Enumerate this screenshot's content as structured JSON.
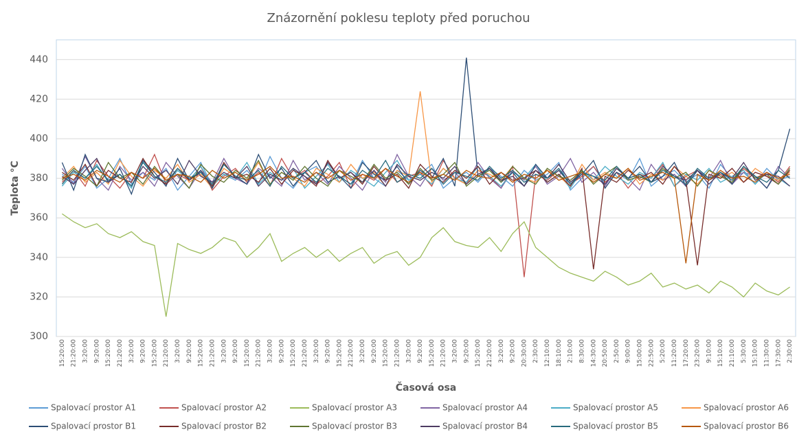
{
  "chart_data": {
    "type": "line",
    "title": "Znázornění poklesu teploty před poruchou",
    "x_label": "Časová osa",
    "y_label": "Teplota °C",
    "categories": [
      "15:20:00",
      "21:20:00",
      "3:20:00",
      "9:20:00",
      "15:20:00",
      "21:20:00",
      "3:20:00",
      "9:20:00",
      "15:20:00",
      "21:20:00",
      "3:20:00",
      "9:20:00",
      "15:20:00",
      "21:20:00",
      "3:20:00",
      "9:20:00",
      "15:20:00",
      "21:20:00",
      "3:20:00",
      "9:20:00",
      "15:20:00",
      "21:20:00",
      "3:20:00",
      "9:20:00",
      "15:20:00",
      "21:20:00",
      "3:20:00",
      "9:20:00",
      "15:20:00",
      "21:20:00",
      "3:20:00",
      "9:20:00",
      "15:20:00",
      "21:20:00",
      "3:20:00",
      "9:20:00",
      "15:20:00",
      "21:20:00",
      "3:20:00",
      "9:20:00",
      "20:30:00",
      "2:30:00",
      "12:10:00",
      "18:10:00",
      "2:10:00",
      "8:30:00",
      "14:30:00",
      "20:50:00",
      "2:50:00",
      "9:00:00",
      "15:00:00",
      "22:50:00",
      "5:20:00",
      "11:20:00",
      "17:20:00",
      "23:20:00",
      "9:10:00",
      "15:10:00",
      "21:10:00",
      "5:30:00",
      "15:10:00",
      "11:30:00",
      "17:30:00",
      "2:30:00"
    ],
    "series": [
      {
        "name": "Spalovací prostor A1",
        "color": "#5b9bd5",
        "values": [
          382,
          378,
          386,
          375,
          380,
          390,
          377,
          383,
          379,
          385,
          374,
          381,
          388,
          376,
          382,
          379,
          384,
          377,
          391,
          380,
          375,
          383,
          386,
          378,
          381,
          377,
          389,
          380,
          376,
          384,
          379,
          382,
          387,
          375,
          380,
          383,
          378,
          385,
          381,
          376,
          384,
          379,
          382,
          388,
          374,
          380,
          386,
          377,
          383,
          379,
          390,
          376,
          381,
          384,
          378,
          382,
          375,
          387,
          380,
          383,
          377,
          385,
          379,
          381
        ]
      },
      {
        "name": "Spalovací prostor A2",
        "color": "#c0504d",
        "values": [
          378,
          384,
          376,
          389,
          381,
          375,
          383,
          380,
          392,
          377,
          382,
          379,
          386,
          374,
          381,
          385,
          378,
          383,
          376,
          390,
          380,
          384,
          377,
          381,
          388,
          375,
          382,
          379,
          385,
          378,
          381,
          383,
          376,
          389,
          380,
          377,
          384,
          381,
          375,
          386,
          330,
          382,
          379,
          384,
          377,
          381,
          386,
          378,
          383,
          375,
          382,
          380,
          387,
          376,
          381,
          384,
          379,
          382,
          377,
          385,
          380,
          383,
          378,
          386
        ]
      },
      {
        "name": "Spalovací prostor A3",
        "color": "#9bbb59",
        "values": [
          362,
          358,
          355,
          357,
          352,
          350,
          353,
          348,
          346,
          310,
          347,
          344,
          342,
          345,
          350,
          348,
          340,
          345,
          352,
          338,
          342,
          345,
          340,
          344,
          338,
          342,
          345,
          337,
          341,
          343,
          336,
          340,
          350,
          355,
          348,
          346,
          345,
          350,
          343,
          352,
          358,
          345,
          340,
          335,
          332,
          330,
          328,
          333,
          330,
          326,
          328,
          332,
          325,
          327,
          324,
          326,
          322,
          328,
          325,
          320,
          327,
          323,
          321,
          325
        ]
      },
      {
        "name": "Spalovací prostor A4",
        "color": "#8064a2",
        "values": [
          385,
          377,
          391,
          380,
          374,
          386,
          379,
          383,
          376,
          388,
          381,
          375,
          384,
          378,
          390,
          380,
          377,
          385,
          381,
          376,
          389,
          379,
          383,
          377,
          386,
          380,
          374,
          384,
          378,
          392,
          381,
          376,
          385,
          379,
          383,
          377,
          388,
          380,
          375,
          384,
          379,
          386,
          377,
          381,
          390,
          378,
          383,
          376,
          385,
          380,
          374,
          387,
          379,
          382,
          376,
          384,
          380,
          389,
          377,
          383,
          381,
          375,
          386,
          380
        ]
      },
      {
        "name": "Spalovací prostor A5",
        "color": "#4bacc6",
        "values": [
          376,
          383,
          380,
          387,
          378,
          382,
          375,
          389,
          381,
          377,
          384,
          379,
          386,
          376,
          382,
          380,
          388,
          377,
          383,
          379,
          385,
          375,
          381,
          387,
          378,
          384,
          380,
          376,
          383,
          389,
          379,
          382,
          377,
          385,
          380,
          378,
          386,
          381,
          376,
          383,
          380,
          387,
          378,
          382,
          375,
          384,
          379,
          386,
          381,
          377,
          383,
          380,
          388,
          376,
          382,
          379,
          385,
          378,
          381,
          384,
          377,
          383,
          380,
          376
        ]
      },
      {
        "name": "Spalovací prostor A6",
        "color": "#f79646",
        "values": [
          380,
          386,
          378,
          383,
          377,
          389,
          381,
          376,
          384,
          380,
          387,
          378,
          382,
          375,
          385,
          381,
          379,
          388,
          377,
          383,
          380,
          376,
          385,
          382,
          378,
          387,
          380,
          383,
          376,
          384,
          381,
          424,
          378,
          385,
          380,
          377,
          384,
          382,
          379,
          386,
          380,
          378,
          384,
          381,
          376,
          387,
          379,
          383,
          380,
          385,
          377,
          382,
          379,
          386,
          381,
          377,
          384,
          380,
          383,
          378,
          385,
          381,
          379,
          383
        ]
      },
      {
        "name": "Spalovací prostor B1",
        "color": "#2c4d75",
        "values": [
          388,
          374,
          392,
          380,
          378,
          385,
          372,
          389,
          383,
          376,
          390,
          379,
          384,
          375,
          387,
          381,
          377,
          392,
          380,
          385,
          376,
          383,
          389,
          378,
          381,
          375,
          388,
          382,
          379,
          386,
          377,
          384,
          380,
          390,
          376,
          441,
          381,
          385,
          378,
          383,
          376,
          387,
          380,
          384,
          377,
          382,
          389,
          375,
          383,
          380,
          386,
          378,
          381,
          388,
          376,
          384,
          379,
          383,
          377,
          386,
          381,
          375,
          384,
          405
        ]
      },
      {
        "name": "Spalovací prostor B2",
        "color": "#772c2a",
        "values": [
          383,
          379,
          387,
          376,
          384,
          380,
          378,
          390,
          381,
          377,
          385,
          379,
          383,
          376,
          388,
          380,
          382,
          378,
          385,
          377,
          384,
          381,
          376,
          389,
          380,
          383,
          377,
          386,
          379,
          382,
          375,
          387,
          381,
          378,
          384,
          380,
          386,
          377,
          383,
          379,
          380,
          384,
          378,
          382,
          376,
          385,
          334,
          381,
          378,
          384,
          380,
          383,
          377,
          386,
          379,
          336,
          382,
          380,
          385,
          378,
          383,
          381,
          377,
          384
        ]
      },
      {
        "name": "Spalovací prostor B3",
        "color": "#5f7530",
        "values": [
          379,
          385,
          381,
          376,
          388,
          380,
          383,
          377,
          386,
          379,
          382,
          375,
          387,
          381,
          378,
          384,
          380,
          389,
          377,
          383,
          379,
          386,
          380,
          376,
          384,
          381,
          378,
          387,
          380,
          383,
          377,
          385,
          379,
          382,
          388,
          376,
          381,
          384,
          378,
          386,
          380,
          377,
          385,
          381,
          379,
          384,
          377,
          382,
          386,
          379,
          381,
          378,
          385,
          380,
          383,
          376,
          384,
          381,
          378,
          386,
          380,
          382,
          377,
          385
        ]
      },
      {
        "name": "Spalovací prostor B4",
        "color": "#4d3b62",
        "values": [
          381,
          377,
          384,
          390,
          378,
          382,
          376,
          386,
          380,
          384,
          377,
          389,
          381,
          378,
          383,
          380,
          386,
          376,
          382,
          379,
          385,
          381,
          377,
          388,
          380,
          383,
          378,
          384,
          376,
          387,
          381,
          379,
          383,
          380,
          386,
          377,
          382,
          385,
          379,
          381,
          376,
          384,
          380,
          387,
          378,
          383,
          381,
          377,
          385,
          380,
          382,
          378,
          386,
          381,
          379,
          384,
          377,
          383,
          380,
          388,
          379,
          382,
          381,
          376
        ]
      },
      {
        "name": "Spalovací prostor B5",
        "color": "#276a7c",
        "values": [
          377,
          384,
          380,
          386,
          379,
          382,
          376,
          388,
          381,
          378,
          385,
          380,
          383,
          377,
          387,
          381,
          379,
          384,
          376,
          386,
          380,
          383,
          378,
          385,
          381,
          377,
          384,
          380,
          389,
          378,
          382,
          380,
          385,
          377,
          383,
          381,
          379,
          386,
          380,
          384,
          378,
          382,
          380,
          385,
          377,
          383,
          381,
          379,
          386,
          380,
          382,
          378,
          384,
          381,
          377,
          385,
          380,
          383,
          379,
          386,
          381,
          378,
          384,
          380
        ]
      },
      {
        "name": "Spalovací prostor B6",
        "color": "#b65708",
        "values": [
          380,
          382,
          379,
          384,
          381,
          378,
          383,
          380,
          385,
          379,
          382,
          381,
          378,
          384,
          380,
          383,
          379,
          382,
          386,
          380,
          381,
          378,
          383,
          380,
          384,
          379,
          382,
          380,
          385,
          381,
          378,
          383,
          380,
          382,
          379,
          384,
          381,
          380,
          383,
          378,
          382,
          380,
          384,
          379,
          381,
          383,
          378,
          382,
          380,
          385,
          379,
          381,
          383,
          380,
          337,
          382,
          379,
          384,
          380,
          381,
          378,
          383,
          380,
          382
        ]
      }
    ],
    "ylim": [
      300,
      450
    ],
    "yticks": [
      300,
      320,
      340,
      360,
      380,
      400,
      420,
      440
    ],
    "grid": true,
    "legend": "bottom"
  }
}
